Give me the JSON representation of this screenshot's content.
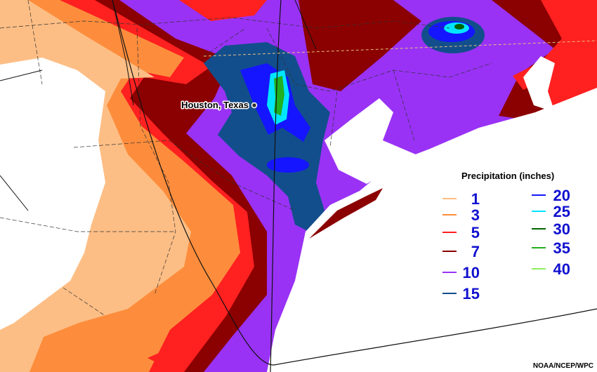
{
  "map": {
    "city": {
      "label": "Houston, Texas"
    },
    "legend": {
      "title": "Precipitation (inches)",
      "items": [
        {
          "label": 1,
          "color": "#fdbe85"
        },
        {
          "label": 3,
          "color": "#fd8d3c"
        },
        {
          "label": 5,
          "color": "#ff2020"
        },
        {
          "label": 7,
          "color": "#8b0000"
        },
        {
          "label": 10,
          "color": "#9932f5"
        },
        {
          "label": 15,
          "color": "#124e8c"
        },
        {
          "label": 20,
          "color": "#1515ff"
        },
        {
          "label": 25,
          "color": "#00e5ff"
        },
        {
          "label": 30,
          "color": "#006400"
        },
        {
          "label": 35,
          "color": "#20b020"
        },
        {
          "label": 40,
          "color": "#90ee60"
        }
      ]
    },
    "credit": "NOAA/NCEP/WPC"
  }
}
